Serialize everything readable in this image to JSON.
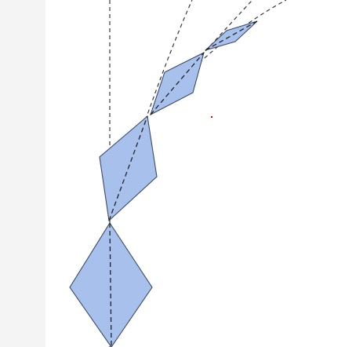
{
  "figure": {
    "fill_color": "#a8c0ec",
    "stroke_color": "#3c4a6a",
    "guide_color": "#2a2a2a",
    "marker_color": "#ff0000"
  },
  "shapes": [
    {
      "name": "rhombus-1"
    },
    {
      "name": "rhombus-2"
    },
    {
      "name": "rhombus-3"
    },
    {
      "name": "rhombus-4"
    }
  ]
}
